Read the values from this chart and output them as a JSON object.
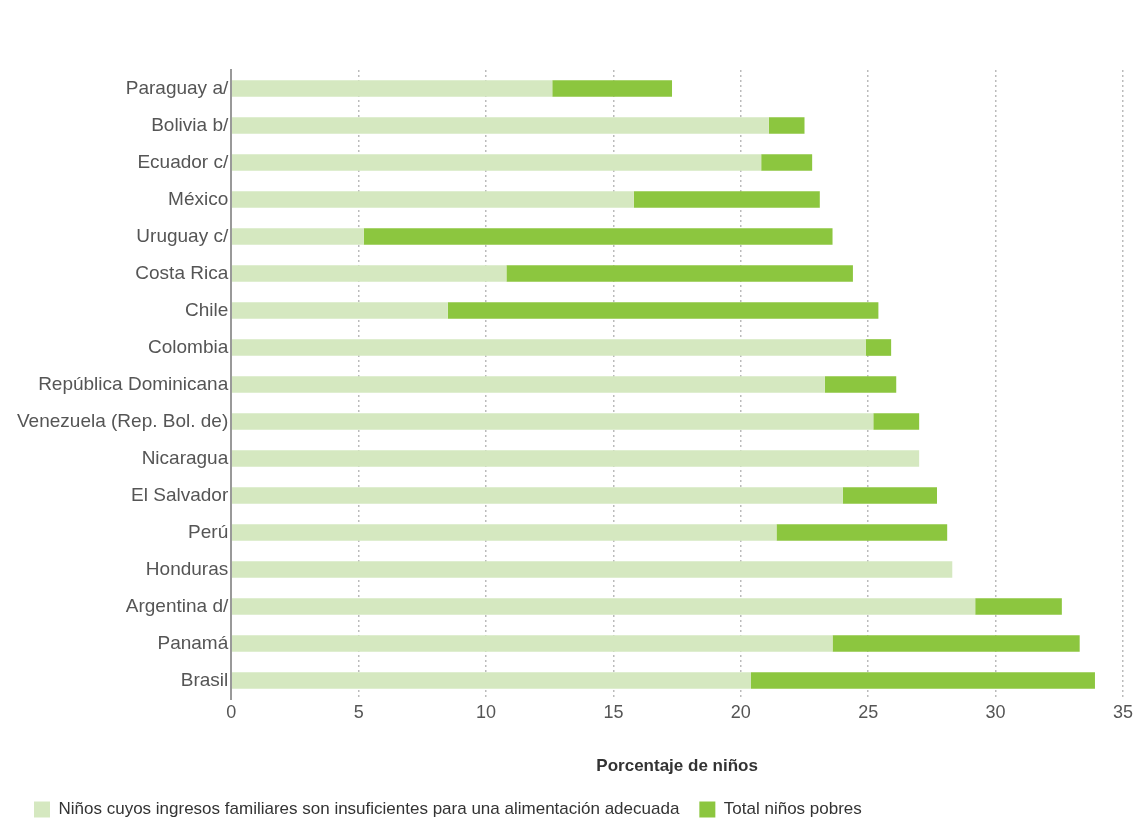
{
  "chart_data": {
    "type": "bar",
    "orientation": "horizontal",
    "stacked": true,
    "categories": [
      "Paraguay a/",
      "Bolivia b/",
      "Ecuador c/",
      "México",
      "Uruguay c/",
      "Costa Rica",
      "Chile",
      "Colombia",
      "República Dominicana",
      "Venezuela (Rep. Bol. de)",
      "Nicaragua",
      "El Salvador",
      "Perú",
      "Honduras",
      "Argentina d/",
      "Panamá",
      "Brasil"
    ],
    "series": [
      {
        "name": "Niños cuyos ingresos familiares son insuficientes para una alimentación adecuada",
        "color": "#d5e8c0",
        "values": [
          12.6,
          21.1,
          20.8,
          15.8,
          5.2,
          10.8,
          8.5,
          24.9,
          23.3,
          25.2,
          27.0,
          24.0,
          21.4,
          28.3,
          29.2,
          23.6,
          20.4
        ]
      },
      {
        "name": "Total niños pobres",
        "color": "#8cc63f",
        "values": [
          4.7,
          1.4,
          2.0,
          7.3,
          18.4,
          13.6,
          16.9,
          1.0,
          2.8,
          1.8,
          null,
          3.7,
          6.7,
          null,
          3.4,
          9.7,
          13.5
        ]
      }
    ],
    "xlabel": "Porcentaje de niños",
    "xlim": [
      0,
      35
    ],
    "xticks": [
      0,
      5,
      10,
      15,
      20,
      25,
      30,
      35
    ],
    "grid": "x",
    "legend": "bottom"
  }
}
